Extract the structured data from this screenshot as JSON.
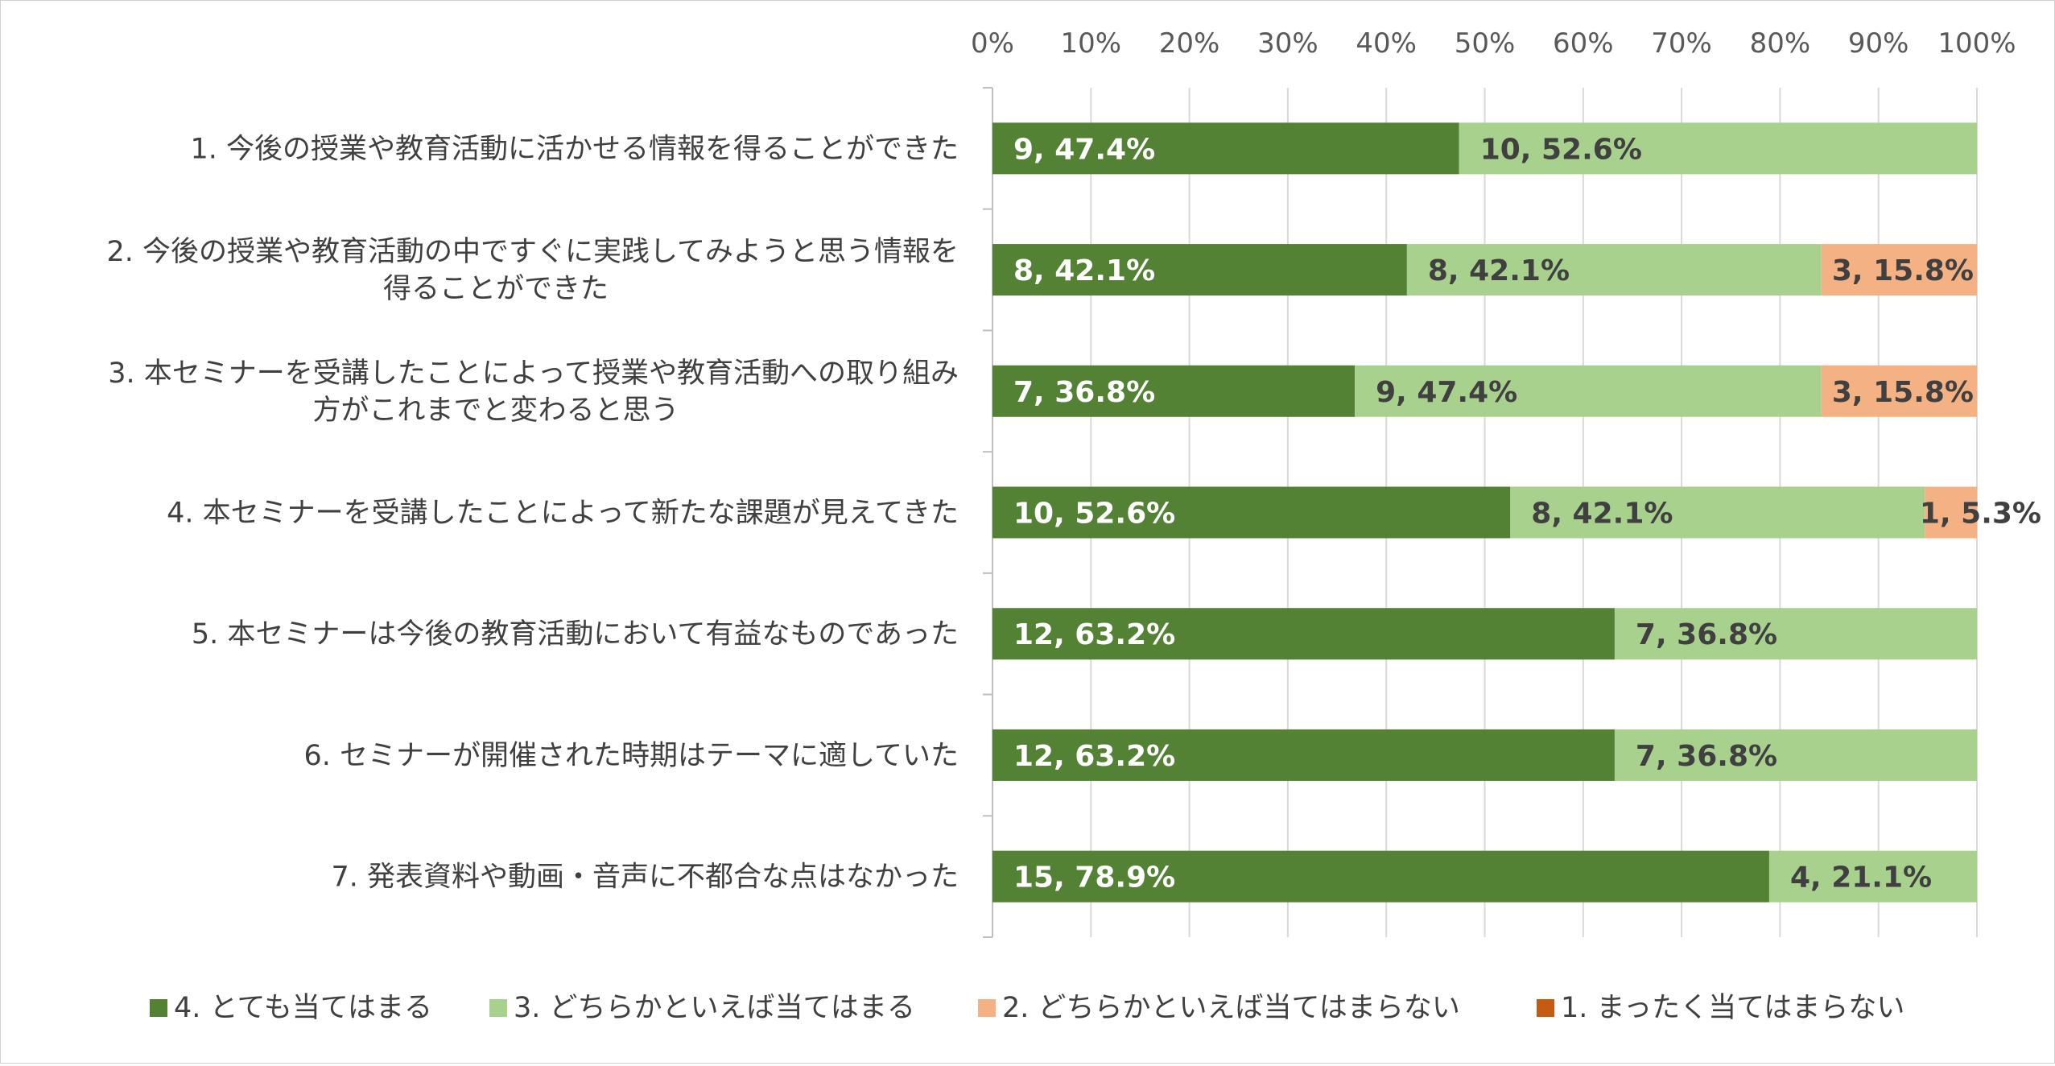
{
  "chart_data": {
    "type": "bar",
    "orientation": "horizontal",
    "stacked": "percent",
    "title": "",
    "xlabel": "",
    "ylabel": "",
    "xlim": [
      0,
      100
    ],
    "x_ticks": [
      "0%",
      "10%",
      "20%",
      "30%",
      "40%",
      "50%",
      "60%",
      "70%",
      "80%",
      "90%",
      "100%"
    ],
    "grid": "vertical",
    "legend_position": "bottom",
    "categories": [
      [
        "1. 今後の授業や教育活動に活かせる情報を得ることができた"
      ],
      [
        "2. 今後の授業や教育活動の中ですぐに実践してみようと思う情報を",
        "得ることができた"
      ],
      [
        "3. 本セミナーを受講したことによって授業や教育活動への取り組み",
        "方がこれまでと変わると思う"
      ],
      [
        "4. 本セミナーを受講したことによって新たな課題が見えてきた"
      ],
      [
        "5. 本セミナーは今後の教育活動において有益なものであった"
      ],
      [
        "6. セミナーが開催された時期はテーマに適していた"
      ],
      [
        "7. 発表資料や動画・音声に不都合な点はなかった"
      ]
    ],
    "series": [
      {
        "name": "4. とても当てはまる",
        "color": "#548235",
        "label_color": "#ffffff",
        "counts": [
          9,
          8,
          7,
          10,
          12,
          12,
          15
        ],
        "values": [
          47.4,
          42.1,
          36.8,
          52.6,
          63.2,
          63.2,
          78.9
        ],
        "labels": [
          "9, 47.4%",
          "8, 42.1%",
          "7, 36.8%",
          "10, 52.6%",
          "12, 63.2%",
          "12, 63.2%",
          "15, 78.9%"
        ]
      },
      {
        "name": "3. どちらかといえば当てはまる",
        "color": "#a9d18e",
        "label_color": "#404040",
        "counts": [
          10,
          8,
          9,
          8,
          7,
          7,
          4
        ],
        "values": [
          52.6,
          42.1,
          47.4,
          42.1,
          36.8,
          36.8,
          21.1
        ],
        "labels": [
          "10, 52.6%",
          "8, 42.1%",
          "9, 47.4%",
          "8, 42.1%",
          "7, 36.8%",
          "7, 36.8%",
          "4, 21.1%"
        ]
      },
      {
        "name": "2. どちらかといえば当てはまらない",
        "color": "#f4b183",
        "label_color": "#404040",
        "counts": [
          0,
          3,
          3,
          1,
          0,
          0,
          0
        ],
        "values": [
          0,
          15.8,
          15.8,
          5.3,
          0,
          0,
          0
        ],
        "labels": [
          "",
          "3, 15.8%",
          "3, 15.8%",
          "1, 5.3%",
          "",
          "",
          ""
        ]
      },
      {
        "name": "1. まったく当てはまらない",
        "color": "#c55a11",
        "label_color": "#404040",
        "counts": [
          0,
          0,
          0,
          0,
          0,
          0,
          0
        ],
        "values": [
          0,
          0,
          0,
          0,
          0,
          0,
          0
        ],
        "labels": [
          "",
          "",
          "",
          "",
          "",
          "",
          ""
        ]
      }
    ]
  }
}
